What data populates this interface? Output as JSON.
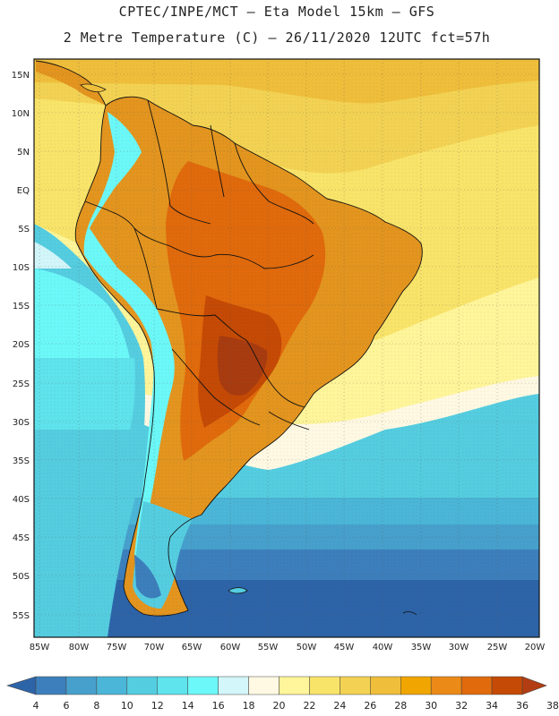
{
  "header": {
    "line1": "CPTEC/INPE/MCT –  Eta Model 15km – GFS",
    "line2": "2 Metre Temperature (C) – 26/11/2020 12UTC fct=57h"
  },
  "axes": {
    "lat_labels": [
      "15N",
      "10N",
      "5N",
      "EQ",
      "5S",
      "10S",
      "15S",
      "20S",
      "25S",
      "30S",
      "35S",
      "40S",
      "45S",
      "50S",
      "55S"
    ],
    "lon_labels": [
      "85W",
      "80W",
      "75W",
      "70W",
      "65W",
      "60W",
      "55W",
      "50W",
      "45W",
      "40W",
      "35W",
      "30W",
      "25W",
      "20W"
    ]
  },
  "colorbar": {
    "labels": [
      "4",
      "6",
      "8",
      "10",
      "12",
      "14",
      "16",
      "18",
      "20",
      "22",
      "24",
      "26",
      "28",
      "30",
      "32",
      "34",
      "36",
      "38"
    ],
    "colors": [
      "#2d64a8",
      "#3c7fbc",
      "#47a0cc",
      "#4bb6d7",
      "#55cde0",
      "#5fe3ec",
      "#6cf8f8",
      "#d2f6fa",
      "#fff9e3",
      "#fff59a",
      "#f9e46a",
      "#f3d253",
      "#efbe3b",
      "#f0a500",
      "#eb8a17",
      "#e06a0c",
      "#c54a05",
      "#b33d12"
    ]
  },
  "legend_colors": {
    "land_hot": "#b34c12",
    "land_warm": "#e3951f",
    "ocean_cold": "#2d6aa8"
  }
}
